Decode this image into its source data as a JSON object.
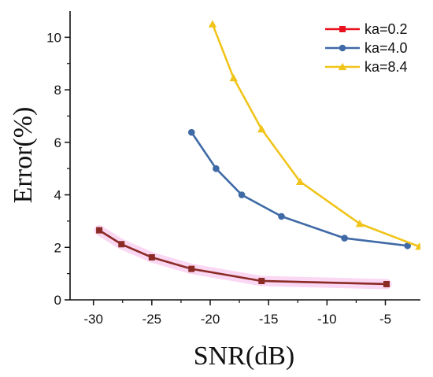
{
  "chart_data": {
    "type": "line",
    "xlabel": "SNR(dB)",
    "ylabel": "Error(%)",
    "xlim": [
      -32,
      -2
    ],
    "ylim": [
      0,
      11
    ],
    "xticks": [
      -30,
      -25,
      -20,
      -15,
      -10,
      -5
    ],
    "yticks": [
      0,
      2,
      4,
      6,
      8,
      10
    ],
    "xtick_labels": [
      "-30",
      "-25",
      "-20",
      "-15",
      "-10",
      "-5"
    ],
    "ytick_labels": [
      "0",
      "2",
      "4",
      "6",
      "8",
      "10"
    ],
    "grid": false,
    "legend_position": "top-right",
    "series": [
      {
        "name": "ka=0.2",
        "color": "#e8121e",
        "marker": "square",
        "x": [
          -29.5,
          -27.6,
          -25.0,
          -21.6,
          -15.6,
          -4.9
        ],
        "y": [
          2.65,
          2.12,
          1.62,
          1.18,
          0.72,
          0.6
        ]
      },
      {
        "name": "ka=4.0",
        "color": "#3f6aa6",
        "marker": "circle",
        "x": [
          -21.6,
          -19.5,
          -17.3,
          -13.9,
          -8.5,
          -3.1
        ],
        "y": [
          6.38,
          5.0,
          4.0,
          3.18,
          2.35,
          2.06
        ]
      },
      {
        "name": "ka=8.4",
        "color": "#f0c419",
        "marker": "triangle",
        "x": [
          -19.8,
          -18.0,
          -15.6,
          -12.3,
          -7.2,
          -2.1
        ],
        "y": [
          10.5,
          8.45,
          6.5,
          4.5,
          2.9,
          2.03
        ]
      }
    ],
    "series_styles": {
      "ka=0.2": {
        "rendered_line_color": "#8b2b26",
        "band_color": "#f5b6ea"
      }
    }
  }
}
